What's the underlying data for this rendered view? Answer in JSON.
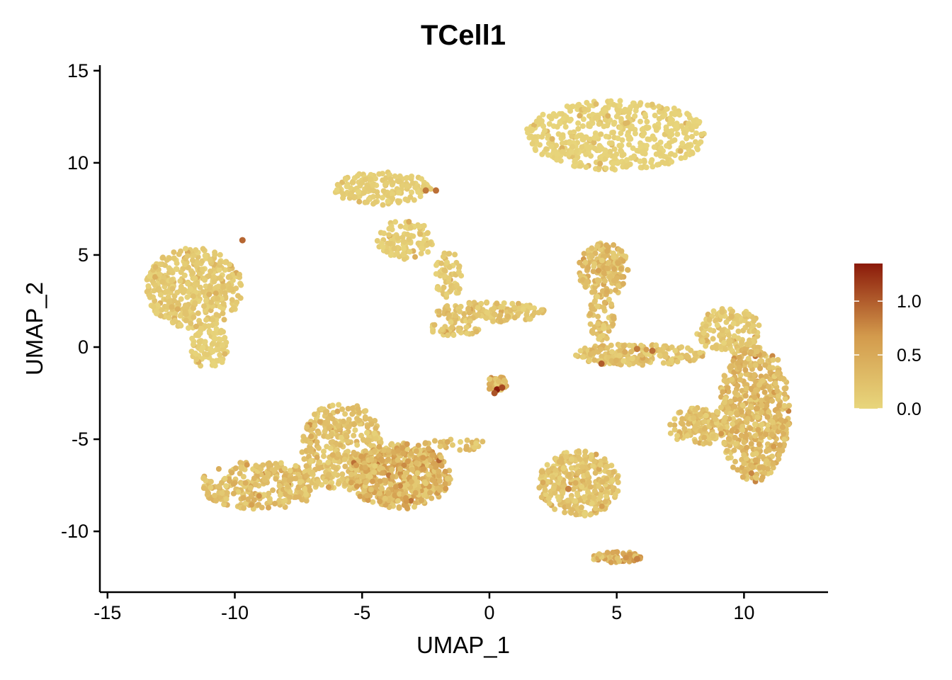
{
  "chart_data": {
    "type": "scatter",
    "title": "TCell1",
    "xlabel": "UMAP_1",
    "ylabel": "UMAP_2",
    "xlim": [
      -15.3,
      13.3
    ],
    "ylim": [
      -13.3,
      15.3
    ],
    "x_ticks": [
      -15,
      -10,
      -5,
      0,
      5,
      10
    ],
    "y_ticks": [
      -10,
      -5,
      0,
      5,
      10,
      15
    ],
    "grid": false,
    "color_scale": {
      "low": "#E8D67C",
      "mid": "#D39A4C",
      "high": "#8B1A0A",
      "domain": [
        0,
        1.35
      ],
      "ticks": [
        0.0,
        0.5,
        1.0
      ],
      "tick_labels": [
        "0.0",
        "0.5",
        "1.0"
      ],
      "legend_position": "right"
    },
    "clusters": [
      {
        "cx": -11.6,
        "cy": 3.2,
        "rx": 1.9,
        "ry": 2.2,
        "n": 420,
        "level": 0.15
      },
      {
        "cx": -11.0,
        "cy": 0.0,
        "rx": 0.75,
        "ry": 1.2,
        "n": 90,
        "level": 0.08
      },
      {
        "cx": 5.0,
        "cy": 11.5,
        "rx": 3.6,
        "ry": 1.9,
        "n": 520,
        "level": 0.05
      },
      {
        "cx": -4.2,
        "cy": 8.6,
        "rx": 1.9,
        "ry": 0.9,
        "n": 170,
        "level": 0.1
      },
      {
        "cx": -3.3,
        "cy": 5.8,
        "rx": 1.1,
        "ry": 1.1,
        "n": 110,
        "level": 0.1
      },
      {
        "cx": -1.6,
        "cy": 3.9,
        "rx": 0.6,
        "ry": 1.3,
        "n": 60,
        "level": 0.15
      },
      {
        "cx": 0.0,
        "cy": 1.9,
        "rx": 2.2,
        "ry": 0.55,
        "n": 140,
        "level": 0.22
      },
      {
        "cx": -1.4,
        "cy": 1.0,
        "rx": 1.0,
        "ry": 0.4,
        "n": 40,
        "level": 0.2
      },
      {
        "cx": 0.3,
        "cy": -2.0,
        "rx": 0.45,
        "ry": 0.45,
        "n": 50,
        "level": 0.35
      },
      {
        "cx": 4.5,
        "cy": 4.2,
        "rx": 1.0,
        "ry": 1.5,
        "n": 170,
        "level": 0.3
      },
      {
        "cx": 4.4,
        "cy": 1.6,
        "rx": 0.5,
        "ry": 1.3,
        "n": 60,
        "level": 0.25
      },
      {
        "cx": 5.8,
        "cy": -0.4,
        "rx": 2.6,
        "ry": 0.6,
        "n": 200,
        "level": 0.22
      },
      {
        "cx": 9.4,
        "cy": 0.9,
        "rx": 1.3,
        "ry": 1.2,
        "n": 150,
        "level": 0.15
      },
      {
        "cx": 10.4,
        "cy": -3.5,
        "rx": 1.4,
        "ry": 3.8,
        "n": 560,
        "level": 0.32
      },
      {
        "cx": 8.2,
        "cy": -4.3,
        "rx": 1.2,
        "ry": 1.0,
        "n": 140,
        "level": 0.25
      },
      {
        "cx": -9.0,
        "cy": -7.5,
        "rx": 2.4,
        "ry": 1.3,
        "n": 300,
        "level": 0.28
      },
      {
        "cx": -5.8,
        "cy": -5.4,
        "rx": 1.6,
        "ry": 2.4,
        "n": 380,
        "level": 0.22
      },
      {
        "cx": -3.5,
        "cy": -7.0,
        "rx": 2.0,
        "ry": 1.8,
        "n": 520,
        "level": 0.42
      },
      {
        "cx": -1.2,
        "cy": -5.3,
        "rx": 1.4,
        "ry": 0.3,
        "n": 30,
        "level": 0.25
      },
      {
        "cx": 3.5,
        "cy": -7.4,
        "rx": 1.6,
        "ry": 1.8,
        "n": 340,
        "level": 0.22
      },
      {
        "cx": 5.0,
        "cy": -11.4,
        "rx": 1.0,
        "ry": 0.3,
        "n": 60,
        "level": 0.45
      }
    ],
    "highlight_points": [
      {
        "x": -9.7,
        "y": 5.8,
        "value": 0.95
      },
      {
        "x": 0.3,
        "y": -2.3,
        "value": 1.35
      },
      {
        "x": 0.5,
        "y": -2.2,
        "value": 1.1
      },
      {
        "x": 0.2,
        "y": -2.5,
        "value": 1.05
      },
      {
        "x": 4.4,
        "y": -0.9,
        "value": 1.0
      },
      {
        "x": 5.8,
        "y": -0.1,
        "value": 0.85
      },
      {
        "x": -2.1,
        "y": 8.5,
        "value": 0.9
      },
      {
        "x": -2.5,
        "y": 8.5,
        "value": 0.85
      },
      {
        "x": 6.4,
        "y": -0.2,
        "value": 0.9
      },
      {
        "x": 3.1,
        "y": -7.7,
        "value": 0.8
      },
      {
        "x": 5.8,
        "y": -11.5,
        "value": 0.8
      }
    ]
  }
}
